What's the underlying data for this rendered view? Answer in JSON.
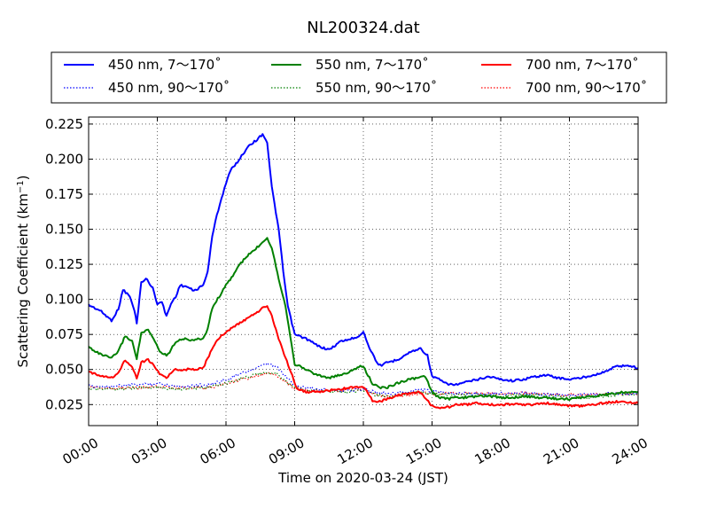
{
  "chart_data": {
    "type": "line",
    "title": "NL200324.dat",
    "xlabel": "Time on 2020-03-24 (JST)",
    "ylabel_main": "Scattering Coefficient (km",
    "ylabel_sup": "−1",
    "ylabel_close": ")",
    "xlim": [
      0,
      24
    ],
    "ylim": [
      0.01,
      0.23
    ],
    "grid": true,
    "legend_position": "top",
    "x_ticks": [
      {
        "value": 0,
        "label": "00:00"
      },
      {
        "value": 3,
        "label": "03:00"
      },
      {
        "value": 6,
        "label": "06:00"
      },
      {
        "value": 9,
        "label": "09:00"
      },
      {
        "value": 12,
        "label": "12:00"
      },
      {
        "value": 15,
        "label": "15:00"
      },
      {
        "value": 18,
        "label": "18:00"
      },
      {
        "value": 21,
        "label": "21:00"
      },
      {
        "value": 24,
        "label": "24:00"
      }
    ],
    "y_ticks": [
      {
        "value": 0.025,
        "label": "0.025"
      },
      {
        "value": 0.05,
        "label": "0.050"
      },
      {
        "value": 0.075,
        "label": "0.075"
      },
      {
        "value": 0.1,
        "label": "0.100"
      },
      {
        "value": 0.125,
        "label": "0.125"
      },
      {
        "value": 0.15,
        "label": "0.150"
      },
      {
        "value": 0.175,
        "label": "0.175"
      },
      {
        "value": 0.2,
        "label": "0.200"
      },
      {
        "value": 0.225,
        "label": "0.225"
      }
    ],
    "series": [
      {
        "name": "450 nm, 7～170˚",
        "color": "#0000ff",
        "style": "solid",
        "x": [
          0.0,
          0.5,
          1.0,
          1.3,
          1.5,
          1.8,
          2.0,
          2.1,
          2.3,
          2.5,
          2.8,
          3.0,
          3.2,
          3.4,
          3.6,
          3.8,
          4.0,
          4.3,
          4.6,
          5.0,
          5.2,
          5.4,
          5.6,
          5.8,
          6.0,
          6.2,
          6.5,
          6.8,
          7.0,
          7.3,
          7.6,
          7.8,
          8.0,
          8.3,
          8.5,
          8.7,
          9.0,
          9.5,
          10.0,
          10.5,
          11.0,
          11.5,
          11.8,
          12.0,
          12.2,
          12.4,
          12.6,
          12.8,
          13.0,
          13.3,
          13.6,
          14.0,
          14.3,
          14.5,
          14.8,
          15.0,
          15.3,
          15.6,
          16.0,
          16.5,
          17.0,
          17.5,
          18.0,
          18.5,
          19.0,
          19.5,
          20.0,
          20.5,
          21.0,
          21.5,
          22.0,
          22.5,
          23.0,
          23.5,
          24.0
        ],
        "values": [
          0.096,
          0.092,
          0.085,
          0.093,
          0.107,
          0.102,
          0.092,
          0.083,
          0.112,
          0.115,
          0.108,
          0.097,
          0.098,
          0.088,
          0.097,
          0.102,
          0.11,
          0.109,
          0.106,
          0.11,
          0.12,
          0.145,
          0.16,
          0.172,
          0.183,
          0.192,
          0.198,
          0.205,
          0.21,
          0.213,
          0.218,
          0.212,
          0.18,
          0.15,
          0.12,
          0.095,
          0.075,
          0.072,
          0.067,
          0.064,
          0.07,
          0.072,
          0.074,
          0.077,
          0.068,
          0.061,
          0.055,
          0.052,
          0.055,
          0.056,
          0.058,
          0.062,
          0.064,
          0.065,
          0.06,
          0.045,
          0.043,
          0.04,
          0.039,
          0.041,
          0.043,
          0.045,
          0.043,
          0.042,
          0.043,
          0.045,
          0.046,
          0.044,
          0.043,
          0.044,
          0.046,
          0.048,
          0.052,
          0.053,
          0.051
        ]
      },
      {
        "name": "450 nm, 90～170˚",
        "color": "#0000ff",
        "style": "dotted",
        "x": [
          0,
          1,
          2,
          3,
          4,
          5,
          5.5,
          6,
          6.5,
          7,
          7.5,
          7.8,
          8.2,
          8.6,
          9,
          9.5,
          10,
          11,
          12,
          12.5,
          13,
          14,
          14.5,
          15,
          15.5,
          16,
          17,
          18,
          19,
          20,
          21,
          22,
          23,
          24
        ],
        "values": [
          0.038,
          0.038,
          0.039,
          0.04,
          0.038,
          0.039,
          0.04,
          0.043,
          0.046,
          0.049,
          0.052,
          0.054,
          0.052,
          0.045,
          0.039,
          0.037,
          0.036,
          0.035,
          0.036,
          0.034,
          0.033,
          0.034,
          0.036,
          0.034,
          0.034,
          0.033,
          0.033,
          0.033,
          0.033,
          0.032,
          0.032,
          0.032,
          0.033,
          0.033
        ]
      },
      {
        "name": "550 nm, 7～170˚",
        "color": "#008000",
        "style": "solid",
        "x": [
          0.0,
          0.5,
          1.0,
          1.3,
          1.6,
          1.9,
          2.1,
          2.3,
          2.6,
          2.9,
          3.1,
          3.4,
          3.6,
          3.8,
          4.1,
          4.5,
          5.0,
          5.2,
          5.4,
          5.7,
          6.0,
          6.3,
          6.6,
          7.0,
          7.3,
          7.6,
          7.8,
          8.0,
          8.3,
          8.6,
          8.8,
          9.0,
          9.5,
          10.0,
          10.5,
          11.0,
          11.5,
          11.8,
          12.0,
          12.2,
          12.4,
          12.7,
          13.0,
          13.3,
          13.6,
          14.0,
          14.4,
          14.7,
          15.0,
          15.3,
          15.7,
          16.0,
          16.5,
          17.0,
          17.5,
          18.0,
          18.5,
          19.0,
          19.5,
          20.0,
          20.5,
          21.0,
          21.5,
          22.0,
          22.5,
          23.0,
          23.5,
          24.0
        ],
        "values": [
          0.066,
          0.061,
          0.058,
          0.063,
          0.074,
          0.07,
          0.058,
          0.076,
          0.078,
          0.07,
          0.063,
          0.06,
          0.064,
          0.07,
          0.072,
          0.071,
          0.072,
          0.079,
          0.094,
          0.102,
          0.11,
          0.117,
          0.125,
          0.132,
          0.136,
          0.141,
          0.144,
          0.137,
          0.115,
          0.095,
          0.075,
          0.054,
          0.05,
          0.046,
          0.044,
          0.046,
          0.049,
          0.052,
          0.052,
          0.046,
          0.04,
          0.037,
          0.037,
          0.039,
          0.041,
          0.043,
          0.044,
          0.045,
          0.034,
          0.03,
          0.029,
          0.03,
          0.03,
          0.031,
          0.031,
          0.03,
          0.03,
          0.031,
          0.03,
          0.03,
          0.029,
          0.029,
          0.03,
          0.031,
          0.032,
          0.033,
          0.034,
          0.034
        ]
      },
      {
        "name": "550 nm, 90～170˚",
        "color": "#008000",
        "style": "dotted",
        "x": [
          0,
          1,
          2,
          3,
          4,
          5,
          5.5,
          6,
          6.5,
          7,
          7.5,
          7.8,
          8.2,
          8.6,
          9,
          9.5,
          10,
          11,
          12,
          12.5,
          13,
          14,
          14.5,
          15,
          15.5,
          16,
          17,
          18,
          19,
          20,
          21,
          22,
          23,
          24
        ],
        "values": [
          0.036,
          0.036,
          0.037,
          0.037,
          0.036,
          0.037,
          0.038,
          0.04,
          0.043,
          0.045,
          0.047,
          0.048,
          0.047,
          0.042,
          0.037,
          0.035,
          0.035,
          0.034,
          0.035,
          0.032,
          0.031,
          0.033,
          0.034,
          0.033,
          0.032,
          0.032,
          0.032,
          0.031,
          0.032,
          0.031,
          0.03,
          0.03,
          0.032,
          0.033
        ]
      },
      {
        "name": "700 nm, 7～170˚",
        "color": "#ff0000",
        "style": "solid",
        "x": [
          0.0,
          0.5,
          1.0,
          1.3,
          1.6,
          1.9,
          2.1,
          2.3,
          2.6,
          2.9,
          3.1,
          3.4,
          3.6,
          3.8,
          4.1,
          4.5,
          5.0,
          5.2,
          5.5,
          5.8,
          6.1,
          6.5,
          7.0,
          7.3,
          7.6,
          7.8,
          8.0,
          8.3,
          8.6,
          8.9,
          9.1,
          9.5,
          10.0,
          10.5,
          11.0,
          11.5,
          12.0,
          12.2,
          12.4,
          12.7,
          13.0,
          13.3,
          13.6,
          14.0,
          14.5,
          15.0,
          15.3,
          15.7,
          16.0,
          16.5,
          17.0,
          17.5,
          18.0,
          18.5,
          19.0,
          19.5,
          20.0,
          20.5,
          21.0,
          21.5,
          22.0,
          22.5,
          23.0,
          23.5,
          24.0
        ],
        "values": [
          0.048,
          0.046,
          0.044,
          0.048,
          0.057,
          0.052,
          0.044,
          0.055,
          0.057,
          0.052,
          0.047,
          0.044,
          0.047,
          0.05,
          0.05,
          0.05,
          0.051,
          0.058,
          0.068,
          0.074,
          0.078,
          0.082,
          0.087,
          0.09,
          0.094,
          0.095,
          0.088,
          0.072,
          0.058,
          0.046,
          0.036,
          0.034,
          0.034,
          0.035,
          0.036,
          0.037,
          0.038,
          0.033,
          0.028,
          0.027,
          0.029,
          0.03,
          0.032,
          0.033,
          0.034,
          0.024,
          0.023,
          0.023,
          0.025,
          0.025,
          0.026,
          0.025,
          0.025,
          0.025,
          0.025,
          0.025,
          0.026,
          0.025,
          0.024,
          0.024,
          0.025,
          0.026,
          0.027,
          0.027,
          0.026
        ]
      },
      {
        "name": "700 nm, 90～170˚",
        "color": "#ff0000",
        "style": "dotted",
        "x": [
          0,
          1,
          2,
          3,
          4,
          5,
          5.5,
          6,
          6.5,
          7,
          7.5,
          7.8,
          8.2,
          8.6,
          9,
          9.5,
          10,
          11,
          12,
          12.5,
          13,
          14,
          14.5,
          15,
          15.5,
          16,
          17,
          18,
          19,
          20,
          21,
          22,
          23,
          24
        ],
        "values": [
          0.037,
          0.037,
          0.037,
          0.038,
          0.037,
          0.037,
          0.038,
          0.04,
          0.042,
          0.044,
          0.046,
          0.047,
          0.046,
          0.041,
          0.037,
          0.035,
          0.035,
          0.035,
          0.036,
          0.032,
          0.031,
          0.032,
          0.033,
          0.033,
          0.033,
          0.033,
          0.033,
          0.033,
          0.033,
          0.032,
          0.032,
          0.032,
          0.033,
          0.033
        ]
      }
    ]
  }
}
